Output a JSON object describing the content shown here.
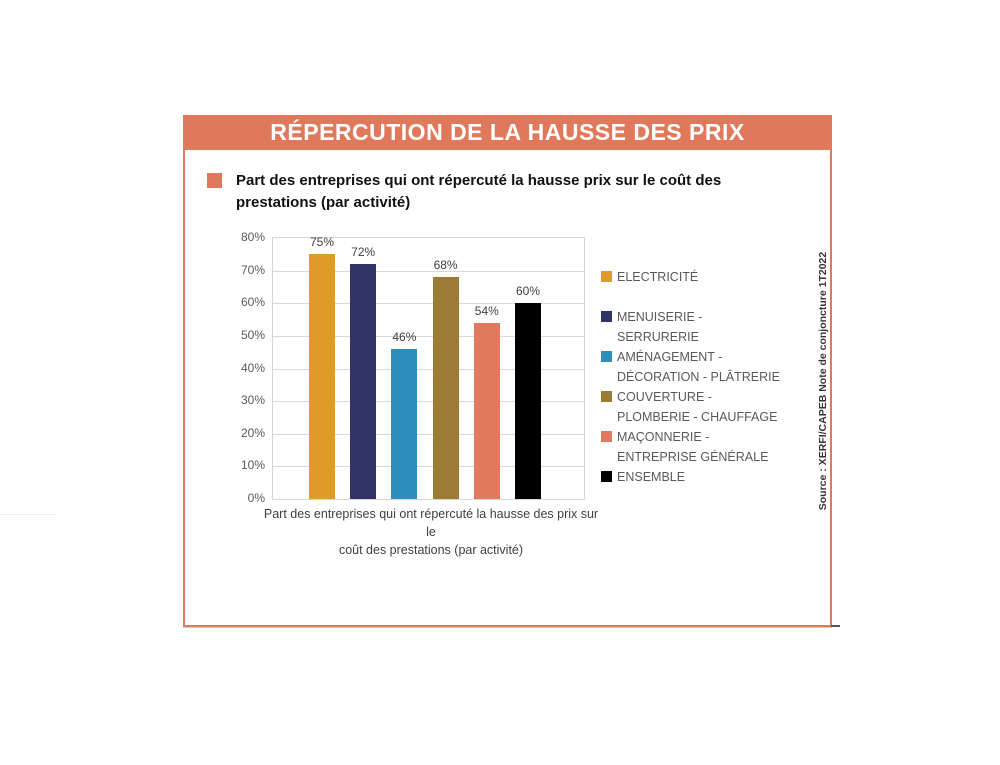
{
  "header": {
    "title": "RÉPERCUTION DE LA HAUSSE DES PRIX"
  },
  "subtitle": {
    "lines": [
      "Part des entreprises qui ont répercuté la hausse prix sur le coût des",
      "prestations (par activité)"
    ]
  },
  "source": {
    "text": "Source : XERFI/CAPEB Note de conjoncture 1T2022"
  },
  "colors": {
    "accent_salmon": "#E0795C",
    "grid": "#D9D9D9",
    "axis_text": "#595959",
    "value_text": "#404040"
  },
  "chart_data": {
    "type": "bar",
    "title": "",
    "categories": [
      "ELECTRICITÉ",
      "MENUISERIE - SERRURERIE",
      "AMÉNAGEMENT - DÉCORATION - PLÂTRERIE",
      "COUVERTURE - PLOMBERIE - CHAUFFAGE",
      "MAÇONNERIE - ENTREPRISE GÉNÉRALE",
      "ENSEMBLE"
    ],
    "values": [
      75,
      72,
      46,
      68,
      54,
      60
    ],
    "value_labels": [
      "75%",
      "72%",
      "46%",
      "68%",
      "54%",
      "60%"
    ],
    "colors": [
      "#DE9B28",
      "#2F3367",
      "#2E8EBE",
      "#9C7C35",
      "#E07A5E",
      "#000000"
    ],
    "xlabel": "Part des entreprises qui ont répercuté la hausse des prix sur le coût des prestations (par activité)",
    "xlabel_lines": [
      "Part des entreprises qui ont répercuté la hausse des prix sur le",
      "coût des prestations (par activité)"
    ],
    "ylabel": "",
    "ylim": [
      0,
      80
    ],
    "ytick_labels": [
      "0%",
      "10%",
      "20%",
      "30%",
      "40%",
      "50%",
      "60%",
      "70%",
      "80%"
    ],
    "grid": true,
    "legend_position": "right",
    "legend_items": [
      {
        "lines": [
          "ELECTRICITÉ"
        ],
        "color": "#DE9B28"
      },
      {
        "lines": [
          "MENUISERIE -",
          "SERRURERIE"
        ],
        "color": "#2F3367"
      },
      {
        "lines": [
          "AMÉNAGEMENT -",
          "DÉCORATION - PLÂTRERIE"
        ],
        "color": "#2E8EBE"
      },
      {
        "lines": [
          "COUVERTURE -",
          "PLOMBERIE - CHAUFFAGE"
        ],
        "color": "#9C7C35"
      },
      {
        "lines": [
          "MAÇONNERIE -",
          "ENTREPRISE GÉNÉRALE"
        ],
        "color": "#E07A5E"
      },
      {
        "lines": [
          "ENSEMBLE"
        ],
        "color": "#000000"
      }
    ]
  }
}
